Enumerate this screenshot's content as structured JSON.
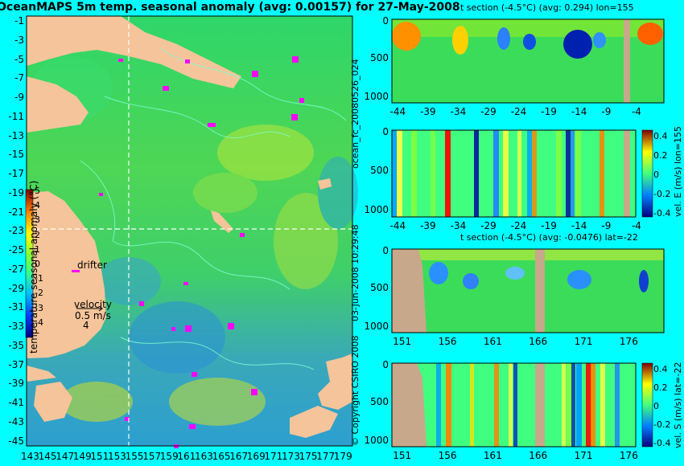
{
  "colors": {
    "background": "#00ffff",
    "land": "#f5c49a",
    "deep_land": "#c8a88a",
    "crosshair": "#ffffff",
    "drifter": "#ff00ff",
    "contour": "#7fffd4"
  },
  "left_map": {
    "title": "OceanMAPS 5m temp. seasonal anomaly (avg: 0.00157) for 27-May-2008",
    "colorbar_label": "temperature seasonal anomaly (°C)",
    "colorbar_ticks": [
      "5",
      "4",
      "3",
      "2",
      "1",
      "0",
      "-1",
      "-2",
      "-3",
      "-4"
    ],
    "legend_drifter": "drifter",
    "legend_velocity": "velocity",
    "legend_velocity_value": "0.5 m/s",
    "legend_velocity_count": "4",
    "cross_lat": "-22",
    "cross_lon": "155"
  },
  "side_labels": {
    "file": "ocean_fc_20080526_024",
    "date": "03-Jun-2008 10:29:48",
    "copyright": "© Copyright CSIRO 2008"
  },
  "panels": {
    "p1": {
      "title": "t section (-4.5°C) (avg: 0.294) lon=155"
    },
    "p2": {
      "title": "",
      "cbar_label": "vel. E (m/s) lon=155",
      "cbar_ticks": [
        "0.4",
        "0.2",
        "0",
        "-0.2",
        "-0.4"
      ]
    },
    "p3": {
      "title": "t section (-4.5°C) (avg: -0.0476) lat=-22"
    },
    "p4": {
      "title": "",
      "cbar_label": "vel. S (m/s) lat=-22",
      "cbar_ticks": [
        "0.4",
        "0.2",
        "0",
        "-0.2",
        "-0.4"
      ]
    }
  },
  "chart_data": [
    {
      "type": "heatmap",
      "title": "OceanMAPS 5m temp. seasonal anomaly (avg: 0.00157) for 27-May-2008",
      "x_ticks": [
        "143",
        "145",
        "147",
        "149",
        "151",
        "153",
        "155",
        "157",
        "159",
        "161",
        "163",
        "165",
        "167",
        "169",
        "171",
        "173",
        "175",
        "177",
        "179"
      ],
      "y_ticks": [
        "-1",
        "-3",
        "-5",
        "-7",
        "-9",
        "-11",
        "-13",
        "-15",
        "-17",
        "-19",
        "-21",
        "-23",
        "-25",
        "-27",
        "-29",
        "-31",
        "-33",
        "-35",
        "-37",
        "-39",
        "-41",
        "-43",
        "-45"
      ],
      "xlim": [
        143,
        180
      ],
      "ylim": [
        -45,
        0
      ],
      "colorbar": {
        "label": "temperature seasonal anomaly (°C)",
        "range": [
          -4,
          5
        ]
      },
      "average": 0.00157
    },
    {
      "type": "heatmap",
      "title": "t section (-4.5°C) (avg: 0.294) lon=155",
      "x_ticks": [
        "-44",
        "-39",
        "-34",
        "-29",
        "-24",
        "-19",
        "-14",
        "-9",
        "-4"
      ],
      "y_ticks": [
        "0",
        "500",
        "1000"
      ],
      "xlim": [
        -45,
        0
      ],
      "ylim": [
        1050,
        0
      ],
      "average": 0.294
    },
    {
      "type": "heatmap",
      "x_ticks": [
        "-44",
        "-39",
        "-34",
        "-29",
        "-24",
        "-19",
        "-14",
        "-9",
        "-4"
      ],
      "y_ticks": [
        "0",
        "500",
        "1000"
      ],
      "xlim": [
        -45,
        0
      ],
      "ylim": [
        1050,
        0
      ],
      "colorbar": {
        "label": "vel. E (m/s) lon=155",
        "range": [
          -0.4,
          0.4
        ]
      }
    },
    {
      "type": "heatmap",
      "title": "t section (-4.5°C) (avg: -0.0476) lat=-22",
      "x_ticks": [
        "151",
        "156",
        "161",
        "166",
        "171",
        "176"
      ],
      "y_ticks": [
        "0",
        "500",
        "1000"
      ],
      "xlim": [
        150,
        180
      ],
      "ylim": [
        1050,
        0
      ],
      "average": -0.0476
    },
    {
      "type": "heatmap",
      "x_ticks": [
        "151",
        "156",
        "161",
        "166",
        "171",
        "176"
      ],
      "y_ticks": [
        "0",
        "500",
        "1000"
      ],
      "xlim": [
        150,
        180
      ],
      "ylim": [
        1050,
        0
      ],
      "colorbar": {
        "label": "vel. S (m/s) lat=-22",
        "range": [
          -0.4,
          0.4
        ]
      }
    }
  ]
}
